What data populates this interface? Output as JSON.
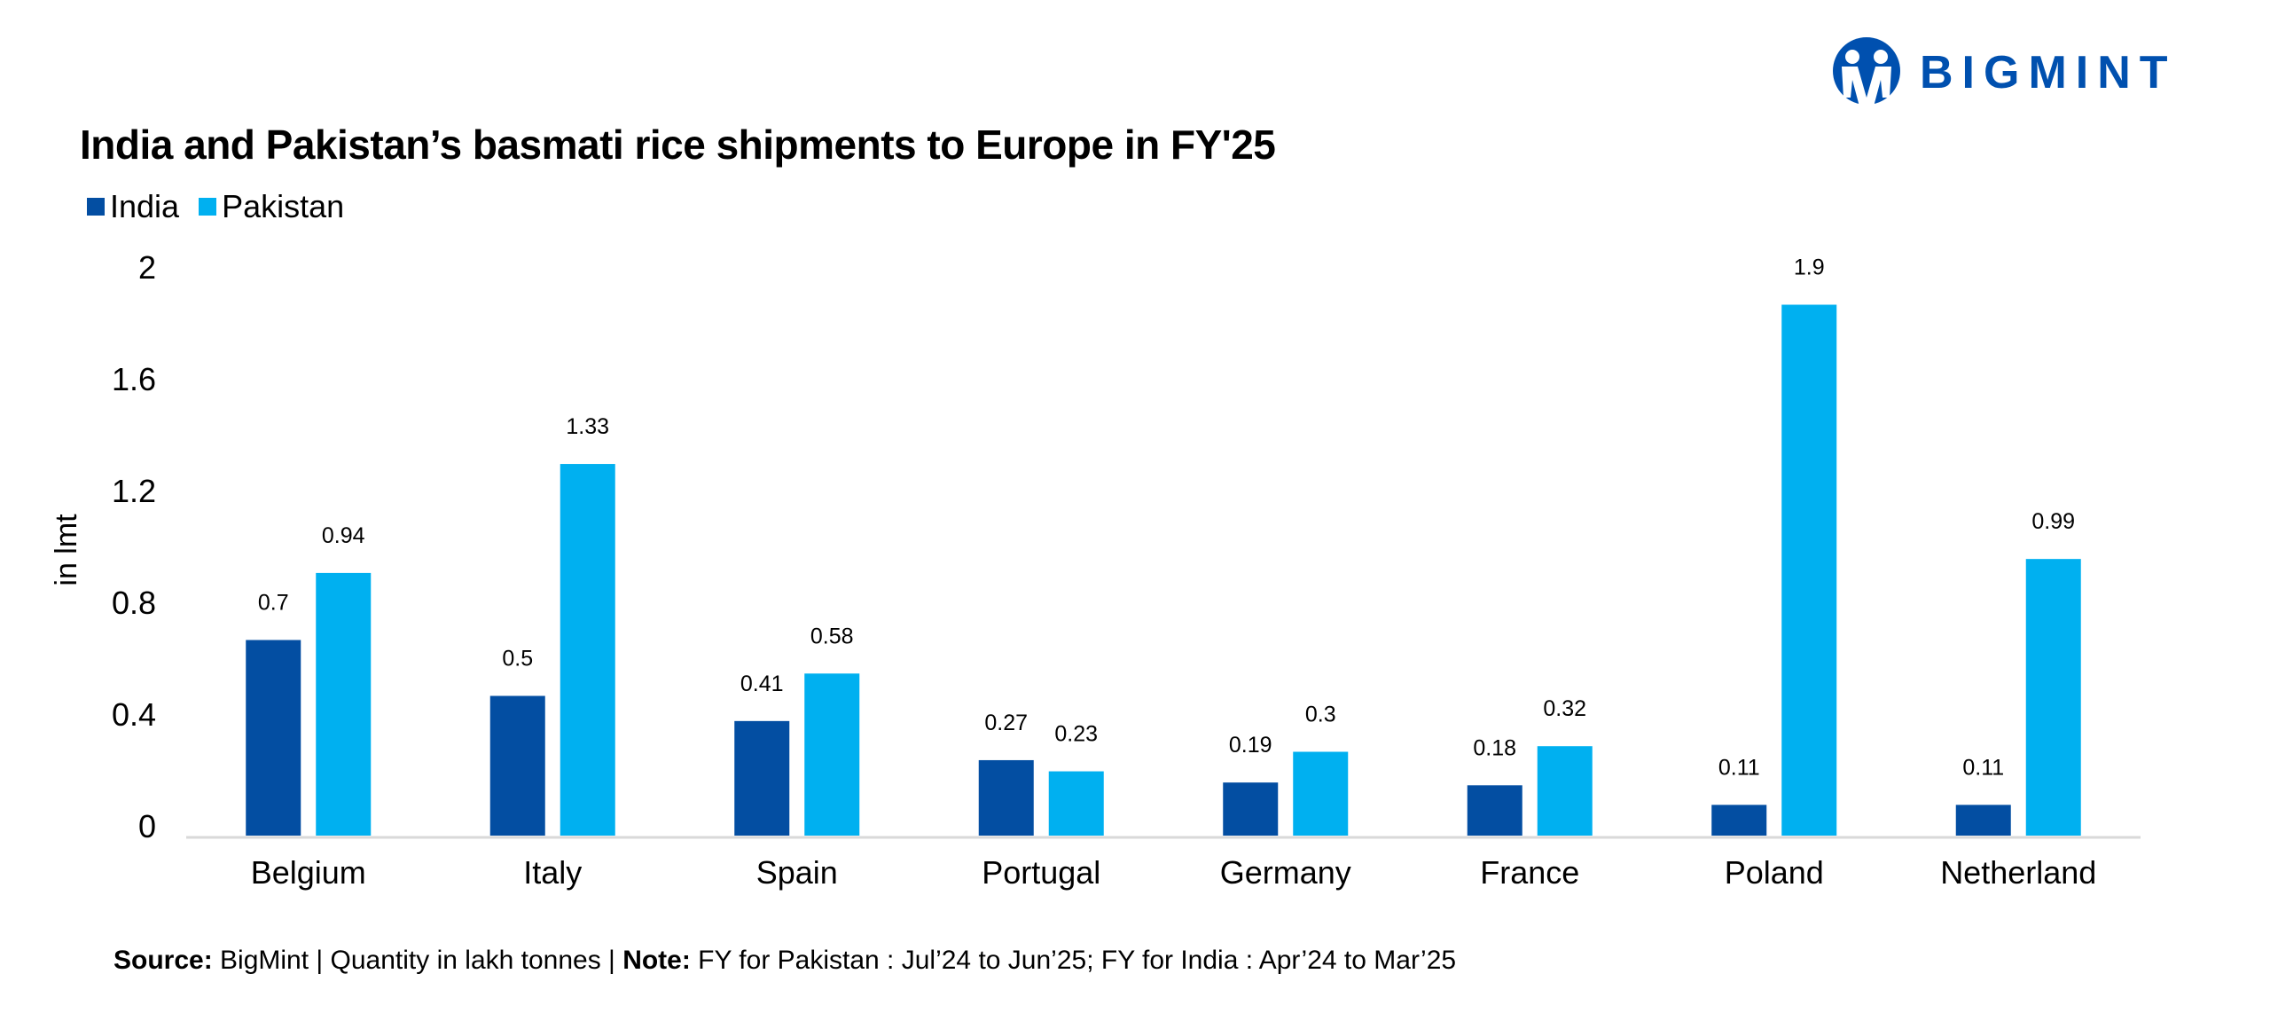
{
  "brand": {
    "logo_text": "BIGMINT",
    "color": "#0050AF"
  },
  "footer": {
    "source_label": "Source:",
    "source_text": " BigMint | Quantity in lakh tonnes | ",
    "note_label": "Note:",
    "note_text": " FY for Pakistan : Jul’24 to Jun’25; FY for India : Apr’24 to Mar’25"
  },
  "chart_data": {
    "type": "bar",
    "title": "India and Pakistan’s basmati rice shipments to Europe in FY'25",
    "xlabel": "",
    "ylabel": "in lmt",
    "ylim": [
      0,
      2
    ],
    "yticks": [
      "0",
      "0.4",
      "0.8",
      "1.2",
      "1.6",
      "2"
    ],
    "grid": false,
    "legend_position": "top-left",
    "categories": [
      "Belgium",
      "Italy",
      "Spain",
      "Portugal",
      "Germany",
      "France",
      "Poland",
      "Netherland"
    ],
    "series": [
      {
        "name": "India",
        "color": "#034EA2",
        "values": [
          0.7,
          0.5,
          0.41,
          0.27,
          0.19,
          0.18,
          0.11,
          0.11
        ]
      },
      {
        "name": "Pakistan",
        "color": "#00B0F0",
        "values": [
          0.94,
          1.33,
          0.58,
          0.23,
          0.3,
          0.32,
          1.9,
          0.99
        ]
      }
    ]
  }
}
